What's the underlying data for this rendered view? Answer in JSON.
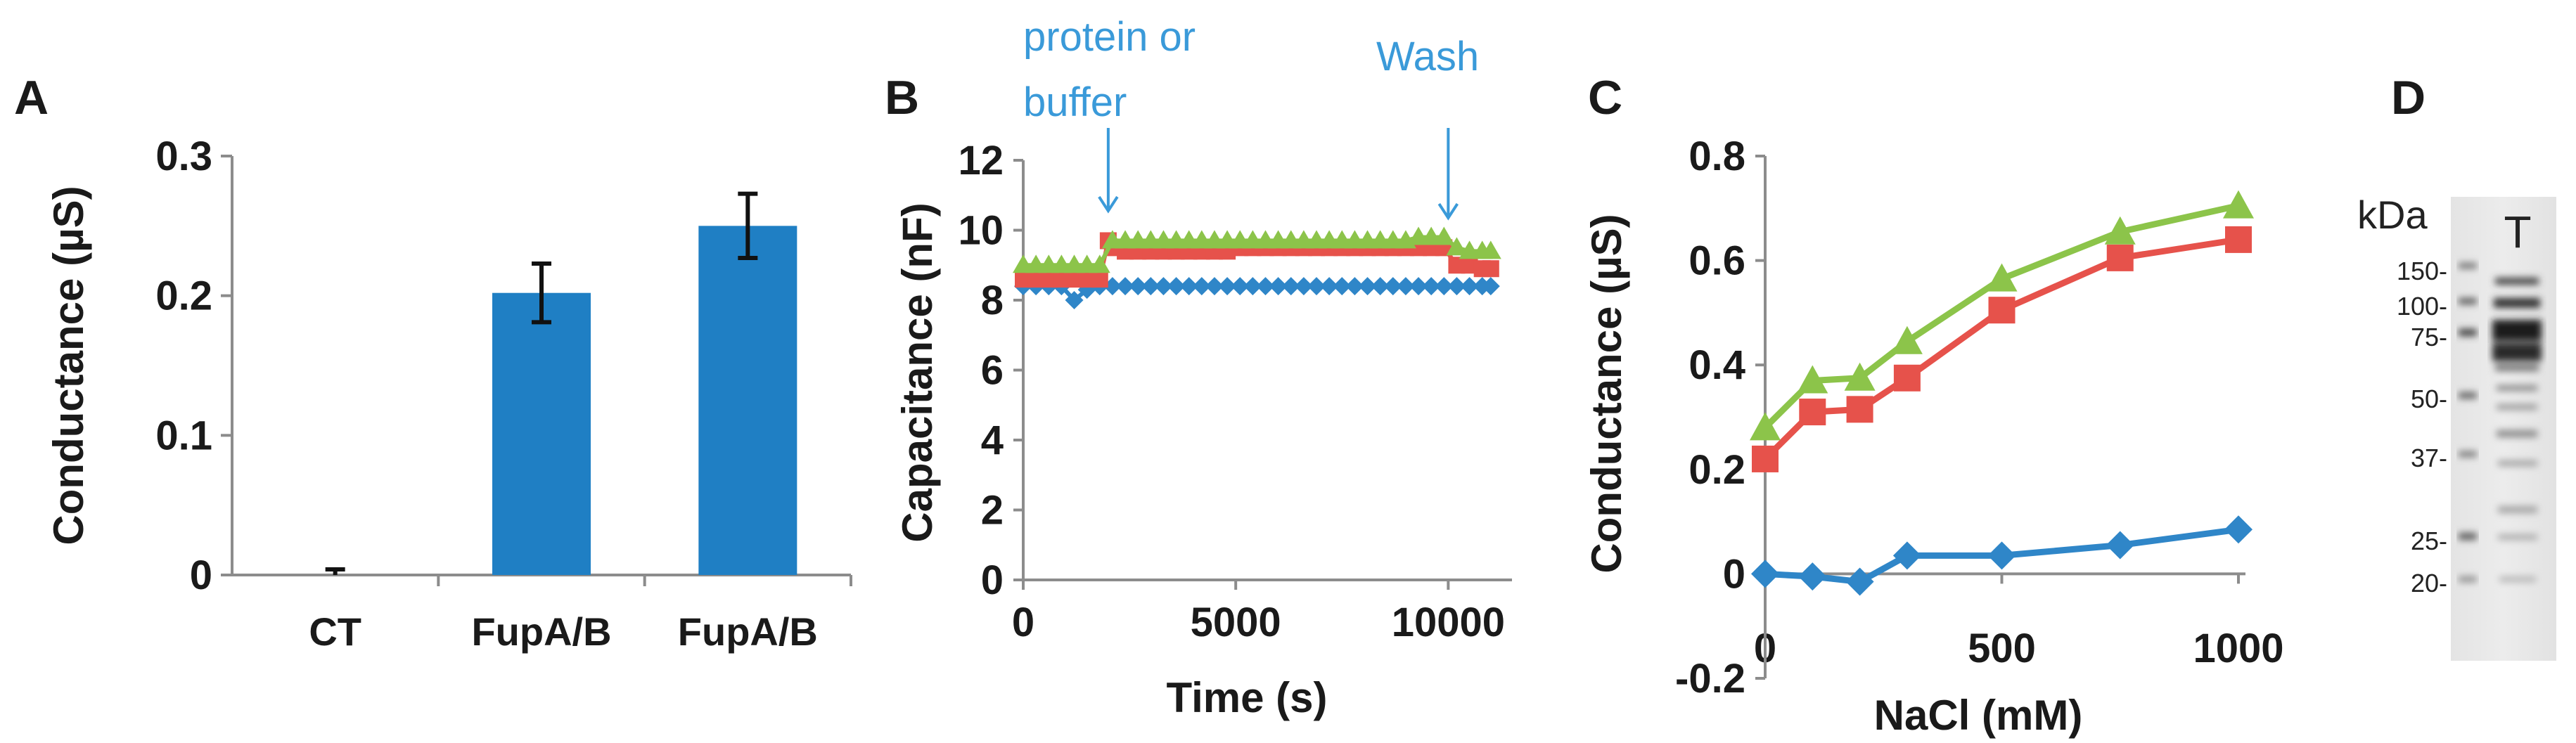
{
  "colors": {
    "blue": "#2f86c8",
    "bar_blue": "#1f7fc4",
    "red": "#e6524b",
    "green": "#8cc44a",
    "annot_blue": "#3a9ad9",
    "axis": "#8c8c8c"
  },
  "panels": {
    "a": "A",
    "b": "B",
    "c": "C",
    "d": "D"
  },
  "chart_data": [
    {
      "panel": "A",
      "type": "bar",
      "ylabel": "Conductance (µS)",
      "ylim": [
        0,
        0.3
      ],
      "yticks": [
        "0",
        "0.1",
        "0.2",
        "0.3"
      ],
      "yticks_values": [
        0,
        0.1,
        0.2,
        0.3
      ],
      "categories": [
        "CT",
        "FupA/B",
        "FupA/B"
      ],
      "values": [
        0.0,
        0.202,
        0.25
      ],
      "errors": [
        0.004,
        0.021,
        0.023
      ],
      "bar_color": "#1f7fc4"
    },
    {
      "panel": "B",
      "type": "line",
      "xlabel": "Time (s)",
      "ylabel": "Capacitance (nF)",
      "xlim": [
        0,
        11500
      ],
      "ylim": [
        0,
        12
      ],
      "xticks": [
        "0",
        "5000",
        "10000"
      ],
      "xticks_values": [
        0,
        5000,
        10000
      ],
      "yticks": [
        "0",
        "2",
        "4",
        "6",
        "8",
        "10",
        "12"
      ],
      "yticks_values": [
        0,
        2,
        4,
        6,
        8,
        10,
        12
      ],
      "annotations": [
        {
          "text_lines": [
            "protein or",
            "buffer"
          ],
          "x": 2000
        },
        {
          "text_lines": [
            "Wash"
          ],
          "x": 10000
        }
      ],
      "series": [
        {
          "color": "#2f86c8",
          "marker": "diamond",
          "x": [
            0,
            300,
            600,
            900,
            1200,
            1500,
            1800,
            2100,
            2400,
            2700,
            3000,
            3300,
            3600,
            3900,
            4200,
            4500,
            4800,
            5100,
            5400,
            5700,
            6000,
            6300,
            6600,
            6900,
            7200,
            7500,
            7800,
            8100,
            8400,
            8700,
            9000,
            9300,
            9600,
            9900,
            10200,
            10500,
            10800,
            11000
          ],
          "y": [
            8.4,
            8.4,
            8.4,
            8.4,
            8.0,
            8.3,
            8.4,
            8.4,
            8.4,
            8.4,
            8.4,
            8.4,
            8.4,
            8.4,
            8.4,
            8.4,
            8.4,
            8.4,
            8.4,
            8.4,
            8.4,
            8.4,
            8.4,
            8.4,
            8.4,
            8.4,
            8.4,
            8.4,
            8.4,
            8.4,
            8.4,
            8.4,
            8.4,
            8.4,
            8.4,
            8.4,
            8.4,
            8.4
          ]
        },
        {
          "color": "#e6524b",
          "marker": "square",
          "x": [
            0,
            300,
            600,
            900,
            1200,
            1500,
            1800,
            2000,
            2100,
            2400,
            2700,
            3000,
            3300,
            3600,
            3900,
            4200,
            4500,
            4800,
            5100,
            5400,
            5700,
            6000,
            6300,
            6600,
            6900,
            7200,
            7500,
            7800,
            8100,
            8400,
            8700,
            9000,
            9300,
            9600,
            9900,
            10200,
            10500,
            10800,
            11000
          ],
          "y": [
            8.6,
            8.6,
            8.6,
            8.6,
            8.6,
            8.6,
            8.6,
            9.7,
            9.5,
            9.4,
            9.4,
            9.4,
            9.4,
            9.4,
            9.4,
            9.4,
            9.4,
            9.4,
            9.5,
            9.5,
            9.5,
            9.5,
            9.5,
            9.5,
            9.5,
            9.5,
            9.5,
            9.5,
            9.5,
            9.5,
            9.5,
            9.5,
            9.5,
            9.5,
            9.5,
            9.0,
            9.0,
            8.9,
            8.9
          ]
        },
        {
          "color": "#8cc44a",
          "marker": "triangle",
          "x": [
            0,
            300,
            600,
            900,
            1200,
            1500,
            1800,
            2100,
            2400,
            2700,
            3000,
            3300,
            3600,
            3900,
            4200,
            4500,
            4800,
            5100,
            5400,
            5700,
            6000,
            6300,
            6600,
            6900,
            7200,
            7500,
            7800,
            8100,
            8400,
            8700,
            9000,
            9300,
            9600,
            9900,
            10200,
            10500,
            10800,
            11000
          ],
          "y": [
            9.0,
            9.0,
            9.0,
            9.0,
            9.0,
            9.0,
            9.0,
            9.7,
            9.7,
            9.7,
            9.7,
            9.7,
            9.7,
            9.7,
            9.7,
            9.7,
            9.7,
            9.7,
            9.7,
            9.7,
            9.7,
            9.7,
            9.7,
            9.7,
            9.7,
            9.7,
            9.7,
            9.7,
            9.7,
            9.7,
            9.7,
            9.8,
            9.8,
            9.8,
            9.5,
            9.4,
            9.4,
            9.4
          ]
        }
      ]
    },
    {
      "panel": "C",
      "type": "line",
      "xlabel": "NaCl (mM)",
      "ylabel": "Conductance (µS)",
      "xlim": [
        0,
        1000
      ],
      "ylim": [
        -0.2,
        0.8
      ],
      "xticks": [
        "0",
        "500",
        "1000"
      ],
      "xticks_values": [
        0,
        500,
        1000
      ],
      "yticks": [
        "-0.2",
        "0",
        "0.2",
        "0.4",
        "0.6",
        "0.8"
      ],
      "yticks_values": [
        -0.2,
        0,
        0.2,
        0.4,
        0.6,
        0.8
      ],
      "series": [
        {
          "color": "#2f86c8",
          "marker": "diamond",
          "x": [
            0,
            100,
            200,
            300,
            500,
            750,
            1000
          ],
          "y": [
            0.0,
            -0.005,
            -0.015,
            0.035,
            0.035,
            0.055,
            0.085
          ]
        },
        {
          "color": "#e6524b",
          "marker": "square",
          "x": [
            0,
            100,
            200,
            300,
            500,
            750,
            1000
          ],
          "y": [
            0.22,
            0.31,
            0.315,
            0.375,
            0.505,
            0.605,
            0.64
          ]
        },
        {
          "color": "#8cc44a",
          "marker": "triangle",
          "x": [
            0,
            100,
            200,
            300,
            500,
            750,
            1000
          ],
          "y": [
            0.28,
            0.37,
            0.375,
            0.445,
            0.565,
            0.655,
            0.705
          ]
        }
      ]
    }
  ],
  "gel": {
    "unit": "kDa",
    "lane_label": "T",
    "markers": [
      "150-",
      "100-",
      "75-",
      "50-",
      "37-",
      "25-",
      "20-"
    ]
  }
}
